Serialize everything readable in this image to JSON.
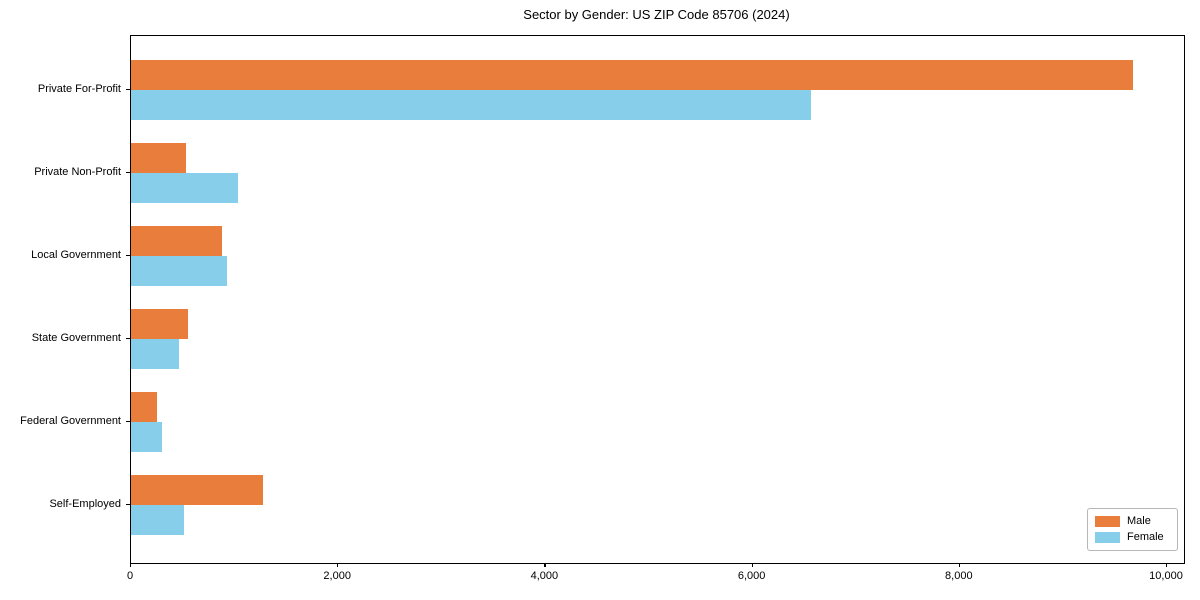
{
  "title": "Sector by Gender: US ZIP Code 85706 (2024)",
  "chart_data": {
    "type": "bar",
    "orientation": "horizontal",
    "title": "Sector by Gender: US ZIP Code 85706 (2024)",
    "categories": [
      "Private For-Profit",
      "Private Non-Profit",
      "Local Government",
      "State Government",
      "Federal Government",
      "Self-Employed"
    ],
    "series": [
      {
        "name": "Male",
        "color": "#E87D3C",
        "values": [
          9670,
          530,
          880,
          550,
          250,
          1275
        ]
      },
      {
        "name": "Female",
        "color": "#87CEEB",
        "values": [
          6560,
          1030,
          925,
          465,
          300,
          510
        ]
      }
    ],
    "xlabel": "",
    "ylabel": "",
    "xlim": [
      0,
      10164
    ],
    "x_ticks": [
      0,
      2000,
      4000,
      6000,
      8000,
      10000
    ],
    "x_tick_labels": [
      "0",
      "2,000",
      "4,000",
      "6,000",
      "8,000",
      "10,000"
    ],
    "grid": false,
    "legend_position": "lower right",
    "colors": {
      "male": "#E87D3C",
      "female": "#87CEEB",
      "axis": "#000000",
      "legend_border": "#b7b7b7"
    }
  }
}
